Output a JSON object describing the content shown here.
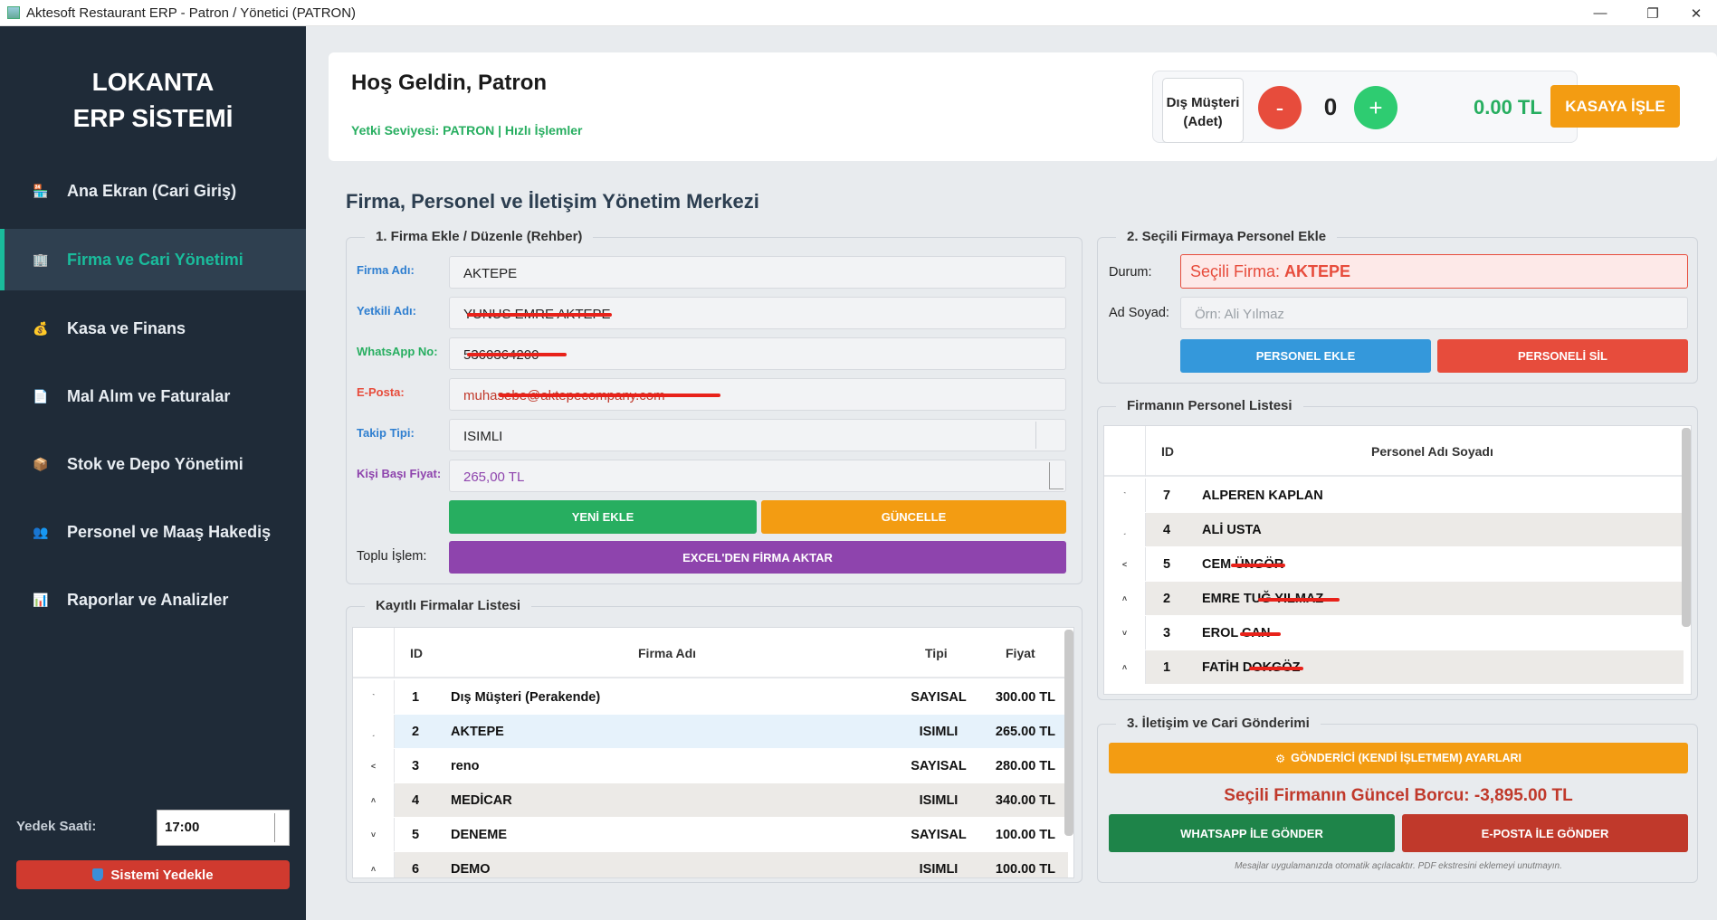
{
  "window": {
    "title": "Aktesoft Restaurant ERP - Patron / Yönetici (PATRON)",
    "min": "—",
    "max": "❐",
    "close": "✕"
  },
  "sidebar": {
    "brand_line1": "LOKANTA",
    "brand_line2": "ERP SİSTEMİ",
    "items": [
      {
        "label": "Ana Ekran (Cari Giriş)",
        "icon": "🏪"
      },
      {
        "label": "Firma ve Cari Yönetimi",
        "icon": "🏢"
      },
      {
        "label": "Kasa ve Finans",
        "icon": "💰"
      },
      {
        "label": "Mal Alım ve Faturalar",
        "icon": "📄"
      },
      {
        "label": "Stok ve Depo Yönetimi",
        "icon": "📦"
      },
      {
        "label": "Personel ve Maaş Hakediş",
        "icon": "👥"
      },
      {
        "label": "Raporlar ve Analizler",
        "icon": "📊"
      }
    ],
    "backup_label": "Yedek Saati:",
    "backup_time": "17:00",
    "backup_button": "Sistemi Yedekle"
  },
  "header": {
    "greeting": "Hoş Geldin, Patron",
    "role": "Yetki Seviyesi: PATRON | Hızlı İşlemler",
    "qty_label_1": "Dış Müşteri",
    "qty_label_2": "(Adet)",
    "minus": "-",
    "qty": "0",
    "plus": "+",
    "amount": "0.00 TL",
    "kasa_button": "KASAYA İŞLE"
  },
  "main_title": "Firma, Personel ve İletişim Yönetim Merkezi",
  "firm_form": {
    "legend": "1. Firma Ekle / Düzenle (Rehber)",
    "fields": [
      {
        "label": "Firma Adı:",
        "value": "AKTEPE"
      },
      {
        "label": "Yetkili Adı:",
        "value": "YUNUS EMRE AKTEPE"
      },
      {
        "label": "WhatsApp No:",
        "value": "5360364200"
      },
      {
        "label": "E-Posta:",
        "value": "muhasebe@aktepecompany.com"
      },
      {
        "label": "Takip Tipi:",
        "value": "ISIMLI"
      },
      {
        "label": "Kişi Başı Fiyat:",
        "value": "265,00 TL"
      }
    ],
    "add_button": "YENİ EKLE",
    "update_button": "GÜNCELLE",
    "bulk_label": "Toplu İşlem:",
    "excel_button": "EXCEL'DEN FİRMA AKTAR",
    "colors": {
      "firma": "#2f7fd0",
      "yetkili": "#2f7fd0",
      "whatsapp": "#27ae60",
      "eposta": "#e74c3c",
      "takip": "#2f7fd0",
      "fiyat": "#8e44ad"
    }
  },
  "firm_list": {
    "legend": "Kayıtlı Firmalar Listesi",
    "columns": [
      "ID",
      "Firma Adı",
      "Tipi",
      "Fiyat"
    ],
    "rows": [
      {
        "id": "1",
        "name": "Dış Müşteri (Perakende)",
        "type": "SAYISAL",
        "price": "300.00 TL"
      },
      {
        "id": "2",
        "name": "AKTEPE",
        "type": "ISIMLI",
        "price": "265.00 TL"
      },
      {
        "id": "3",
        "name": "reno",
        "type": "SAYISAL",
        "price": "280.00 TL"
      },
      {
        "id": "4",
        "name": "MEDİCAR",
        "type": "ISIMLI",
        "price": "340.00 TL"
      },
      {
        "id": "5",
        "name": "DENEME",
        "type": "SAYISAL",
        "price": "100.00 TL"
      },
      {
        "id": "6",
        "name": "DEMO",
        "type": "ISIMLI",
        "price": "100.00 TL"
      }
    ]
  },
  "staff_form": {
    "legend": "2. Seçili Firmaya Personel Ekle",
    "status_label": "Durum:",
    "status_prefix": "Seçili Firma:",
    "status_value": "AKTEPE",
    "name_label": "Ad Soyad:",
    "name_placeholder": "Örn: Ali Yılmaz",
    "add_button": "PERSONEL EKLE",
    "delete_button": "PERSONELİ SİL"
  },
  "staff_list": {
    "legend": "Firmanın Personel Listesi",
    "columns": [
      "ID",
      "Personel Adı Soyadı"
    ],
    "rows": [
      {
        "id": "7",
        "name": "ALPEREN KAPLAN"
      },
      {
        "id": "4",
        "name": "ALİ USTA"
      },
      {
        "id": "5",
        "name": "CEM ÜNGÖR"
      },
      {
        "id": "2",
        "name": "EMRE TUĞ YILMAZ"
      },
      {
        "id": "3",
        "name": "EROL CAN"
      },
      {
        "id": "1",
        "name": "FATİH DOKGÖZ"
      }
    ]
  },
  "contact": {
    "legend": "3. İletişim ve Cari Gönderimi",
    "sender_button": "GÖNDERİCİ (KENDİ İŞLETMEM) AYARLARI",
    "debt_text": "Seçili Firmanın Güncel Borcu: -3,895.00 TL",
    "whatsapp_button": "WHATSAPP İLE GÖNDER",
    "email_button": "E-POSTA İLE GÖNDER",
    "note": "Mesajlar uygulamanızda otomatik açılacaktır. PDF ekstresini eklemeyi unutmayın."
  }
}
